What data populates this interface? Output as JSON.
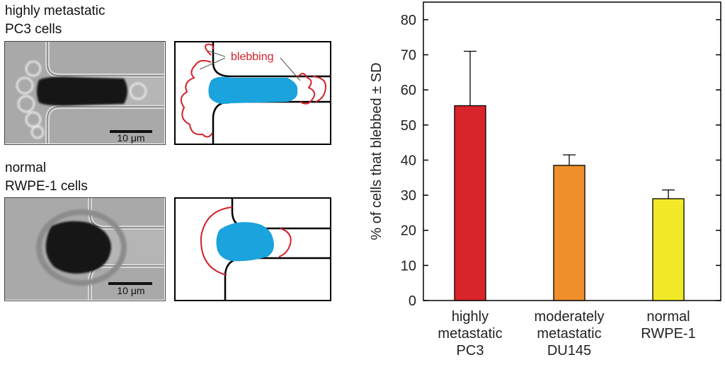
{
  "panels": {
    "top_label_line1": "highly metastatic",
    "top_label_line2": "PC3 cells",
    "bottom_label_line1": "normal",
    "bottom_label_line2": "RWPE-1 cells",
    "scale_bar_top": "10 μm",
    "scale_bar_bottom": "10 μm",
    "sketch_annotation": "blebbing",
    "colors": {
      "cell_fill": "#1aa3dd",
      "outline": "#d4212a"
    }
  },
  "chart_data": {
    "type": "bar",
    "categories": [
      [
        "highly",
        "metastatic",
        "PC3"
      ],
      [
        "moderately",
        "metastatic",
        "DU145"
      ],
      [
        "normal",
        "RWPE-1"
      ]
    ],
    "values": [
      55.5,
      38.5,
      29
    ],
    "errors": [
      15.5,
      3,
      2.5
    ],
    "colors": [
      "#d8242a",
      "#ee8f2c",
      "#f2e928"
    ],
    "ylabel": "% of cells that blebbed ± SD",
    "ylim": [
      0,
      85
    ],
    "yticks": [
      0,
      10,
      20,
      30,
      40,
      50,
      60,
      70,
      80
    ],
    "grid": false
  }
}
